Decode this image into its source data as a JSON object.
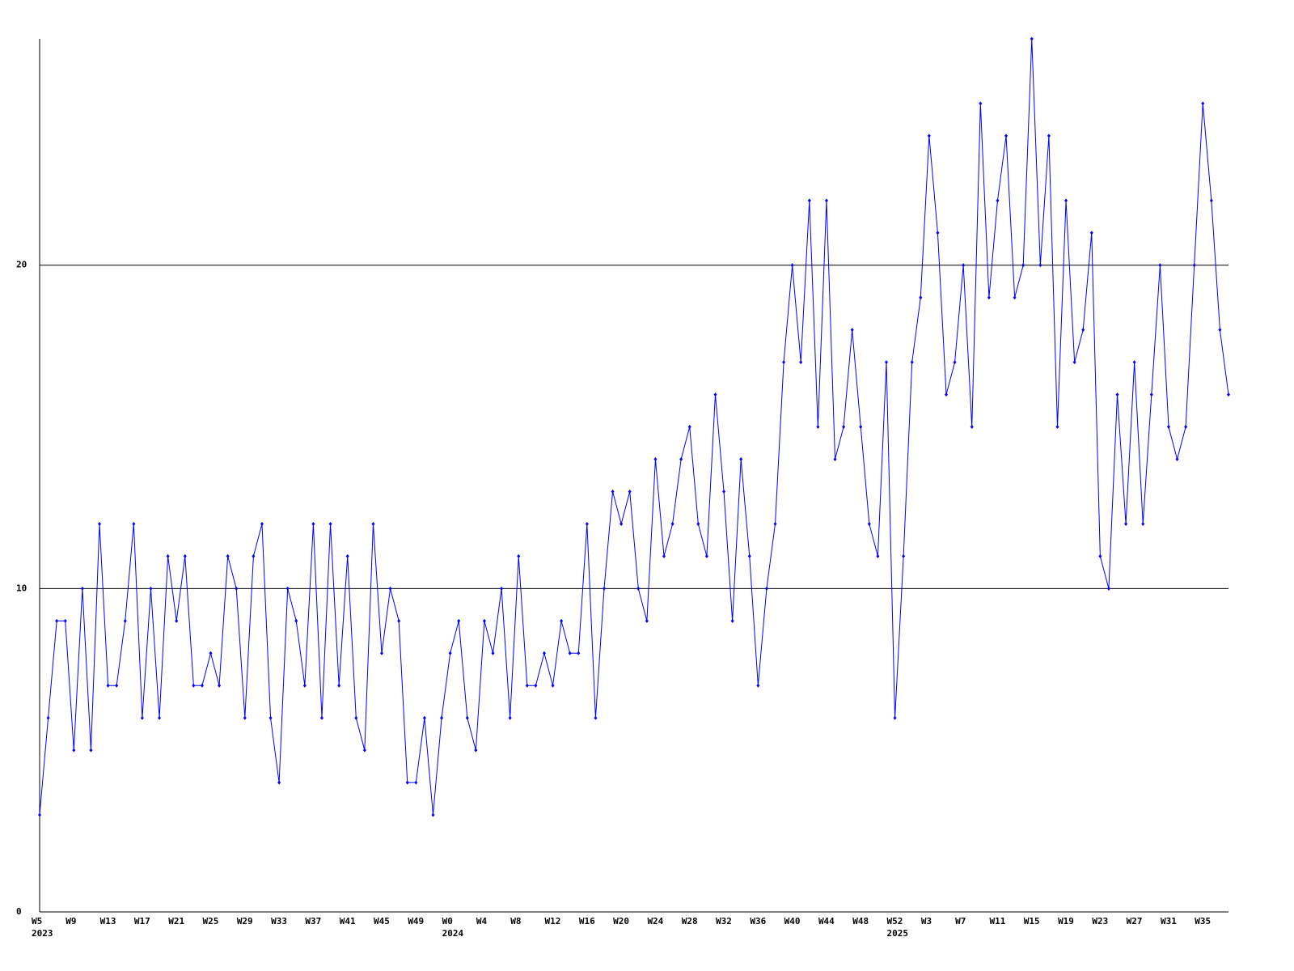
{
  "chart_data": {
    "type": "line",
    "color": "#0000ff",
    "categories": [
      "W5",
      null,
      null,
      null,
      "W9",
      null,
      null,
      null,
      "W13",
      null,
      null,
      null,
      "W17",
      null,
      null,
      null,
      "W21",
      null,
      null,
      null,
      "W25",
      null,
      null,
      null,
      "W29",
      null,
      null,
      null,
      "W33",
      null,
      null,
      null,
      "W37",
      null,
      null,
      null,
      "W41",
      null,
      null,
      null,
      "W45",
      null,
      null,
      null,
      "W49",
      null,
      null,
      null,
      "W0",
      null,
      null,
      null,
      "W4",
      null,
      null,
      null,
      "W8",
      null,
      null,
      null,
      "W12",
      null,
      null,
      null,
      "W16",
      null,
      null,
      null,
      "W20",
      null,
      null,
      null,
      "W24",
      null,
      null,
      null,
      "W28",
      null,
      null,
      null,
      "W32",
      null,
      null,
      null,
      "W36",
      null,
      null,
      null,
      "W40",
      null,
      null,
      null,
      "W44",
      null,
      null,
      null,
      "W48",
      null,
      null,
      null,
      "W52",
      null,
      null,
      null,
      "W3",
      null,
      null,
      null,
      "W7",
      null,
      null,
      null,
      "W11",
      null,
      null,
      null,
      "W15",
      null,
      null,
      null,
      "W19",
      null,
      null,
      null,
      "W23",
      null,
      null,
      null,
      "W27",
      null,
      null,
      null,
      "W31",
      null,
      null,
      null,
      "W35",
      null,
      null,
      null
    ],
    "year_labels": [
      "2023",
      null,
      null,
      null,
      null,
      null,
      null,
      null,
      null,
      null,
      null,
      null,
      null,
      null,
      null,
      null,
      null,
      null,
      null,
      null,
      null,
      null,
      null,
      null,
      null,
      null,
      null,
      null,
      null,
      null,
      null,
      null,
      null,
      null,
      null,
      null,
      null,
      null,
      null,
      null,
      null,
      null,
      null,
      null,
      null,
      null,
      null,
      null,
      "2024",
      null,
      null,
      null,
      null,
      null,
      null,
      null,
      null,
      null,
      null,
      null,
      null,
      null,
      null,
      null,
      null,
      null,
      null,
      null,
      null,
      null,
      null,
      null,
      null,
      null,
      null,
      null,
      null,
      null,
      null,
      null,
      null,
      null,
      null,
      null,
      null,
      null,
      null,
      null,
      null,
      null,
      null,
      null,
      null,
      null,
      null,
      null,
      null,
      null,
      null,
      null,
      "2025",
      null,
      null,
      null,
      null,
      null,
      null,
      null,
      null,
      null,
      null,
      null,
      null,
      null,
      null,
      null,
      null,
      null,
      null,
      null,
      null,
      null,
      null,
      null,
      null,
      null,
      null,
      null,
      null,
      null,
      null,
      null,
      null,
      null,
      null,
      null,
      null,
      null,
      null,
      null
    ],
    "values": [
      3,
      6,
      9,
      9,
      5,
      10,
      5,
      12,
      7,
      7,
      9,
      12,
      6,
      10,
      6,
      11,
      9,
      11,
      7,
      7,
      8,
      7,
      11,
      10,
      6,
      11,
      12,
      6,
      4,
      10,
      9,
      7,
      12,
      6,
      12,
      7,
      11,
      6,
      5,
      12,
      8,
      10,
      9,
      4,
      4,
      6,
      3,
      6,
      8,
      9,
      6,
      5,
      9,
      8,
      10,
      6,
      11,
      7,
      7,
      8,
      7,
      9,
      8,
      8,
      12,
      6,
      10,
      13,
      12,
      13,
      10,
      9,
      14,
      11,
      12,
      14,
      15,
      12,
      11,
      16,
      13,
      9,
      14,
      11,
      7,
      10,
      12,
      17,
      20,
      17,
      22,
      15,
      22,
      14,
      15,
      18,
      15,
      12,
      11,
      17,
      6,
      11,
      17,
      19,
      24,
      21,
      16,
      17,
      20,
      15,
      25,
      19,
      22,
      24,
      19,
      20,
      27,
      20,
      24,
      15,
      22,
      17,
      18,
      21,
      11,
      10,
      16,
      12,
      17,
      12,
      16,
      20,
      15,
      14,
      15,
      20,
      25,
      22,
      18,
      16
    ],
    "ylim": [
      0,
      27
    ],
    "yticks": [
      0,
      10,
      20
    ],
    "grid": true
  }
}
